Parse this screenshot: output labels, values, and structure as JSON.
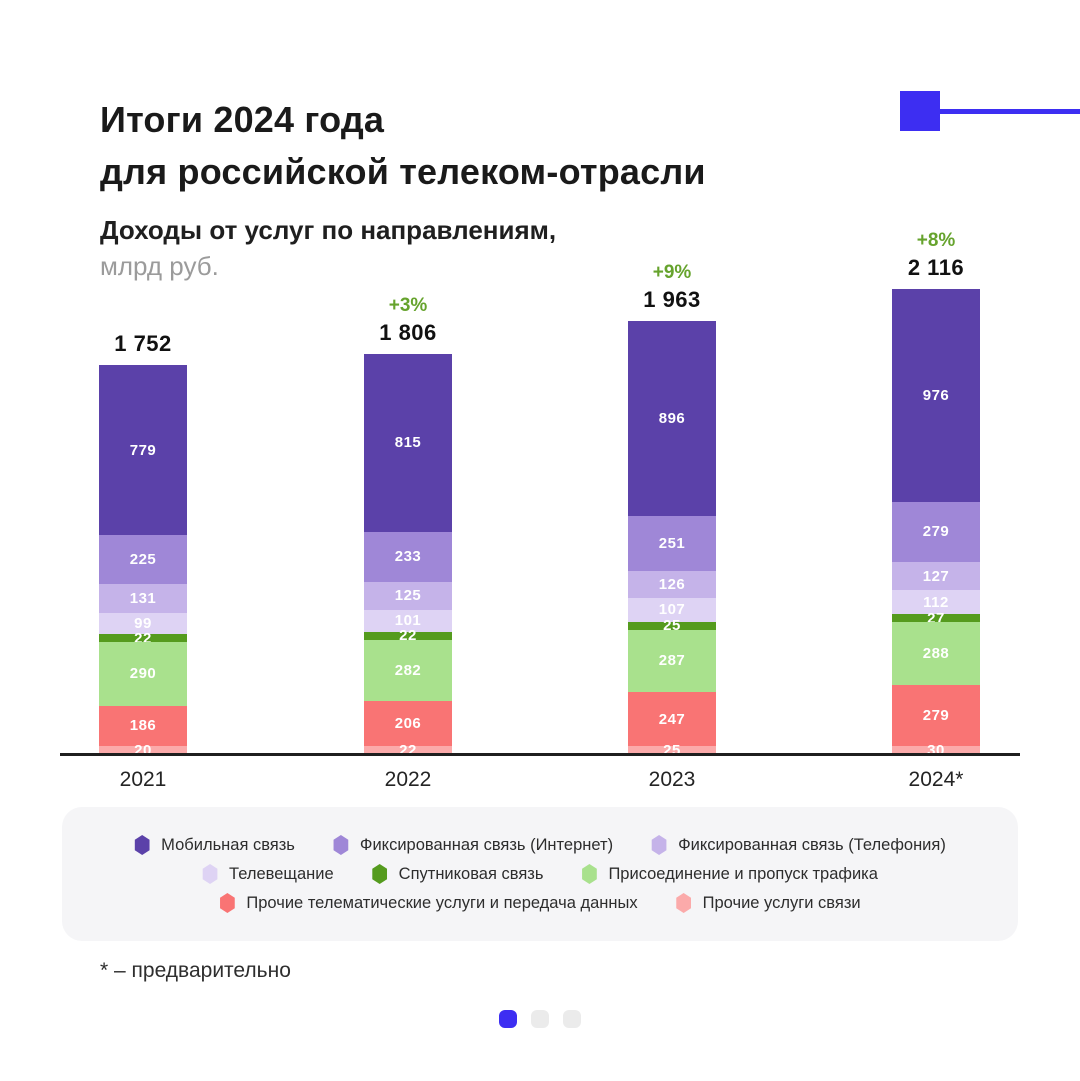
{
  "header": {
    "title_line1": "Итоги 2024 года",
    "title_line2": "для российской телеком-отрасли",
    "subtitle_line1": "Доходы от услуг по направлениям,",
    "subtitle_line2": "млрд руб."
  },
  "colors": {
    "accent_blue": "#3D2EF2",
    "growth_green": "#66A32D",
    "axis": "#1F1F1F",
    "legend_bg": "#F5F5F7",
    "dot_active": "#3D2EF2",
    "dot_inactive": "#EBEBEB"
  },
  "chart_data": {
    "type": "bar",
    "stacked": true,
    "title": "Доходы от услуг по направлениям, млрд руб.",
    "unit": "млрд руб.",
    "categories": [
      "2021",
      "2022",
      "2023",
      "2024*"
    ],
    "totals": [
      1752,
      1806,
      1963,
      2116
    ],
    "total_labels": [
      "1 752",
      "1 806",
      "1 963",
      "2 116"
    ],
    "growth_labels": [
      "",
      "+3%",
      "+9%",
      "+8%"
    ],
    "legend_position": "bottom",
    "series": [
      {
        "name": "Мобильная связь",
        "color": "#5B41A9",
        "values": [
          779,
          815,
          896,
          976
        ]
      },
      {
        "name": "Фиксированная связь (Интернет)",
        "color": "#9F87D7",
        "values": [
          225,
          233,
          251,
          279
        ]
      },
      {
        "name": "Фиксированная связь (Телефония)",
        "color": "#C5B3E9",
        "values": [
          131,
          125,
          126,
          127
        ]
      },
      {
        "name": "Телевещание",
        "color": "#DED3F4",
        "values": [
          99,
          101,
          107,
          112
        ]
      },
      {
        "name": "Спутниковая связь",
        "color": "#559B1E",
        "values": [
          22,
          22,
          25,
          27
        ]
      },
      {
        "name": "Присоединение и пропуск трафика",
        "color": "#A9E18D",
        "values": [
          290,
          282,
          287,
          288
        ]
      },
      {
        "name": "Прочие телематические услуги и передача данных",
        "color": "#F97474",
        "values": [
          186,
          206,
          247,
          279
        ]
      },
      {
        "name": "Прочие услуги связи",
        "color": "#FBAAAA",
        "values": [
          20,
          22,
          25,
          30
        ]
      }
    ],
    "legend_rows": [
      [
        0,
        1,
        2
      ],
      [
        3,
        4,
        5
      ],
      [
        6,
        7
      ]
    ]
  },
  "footnote": "* – предварительно",
  "pagination": {
    "dot_count": 3,
    "active_index": 0
  }
}
